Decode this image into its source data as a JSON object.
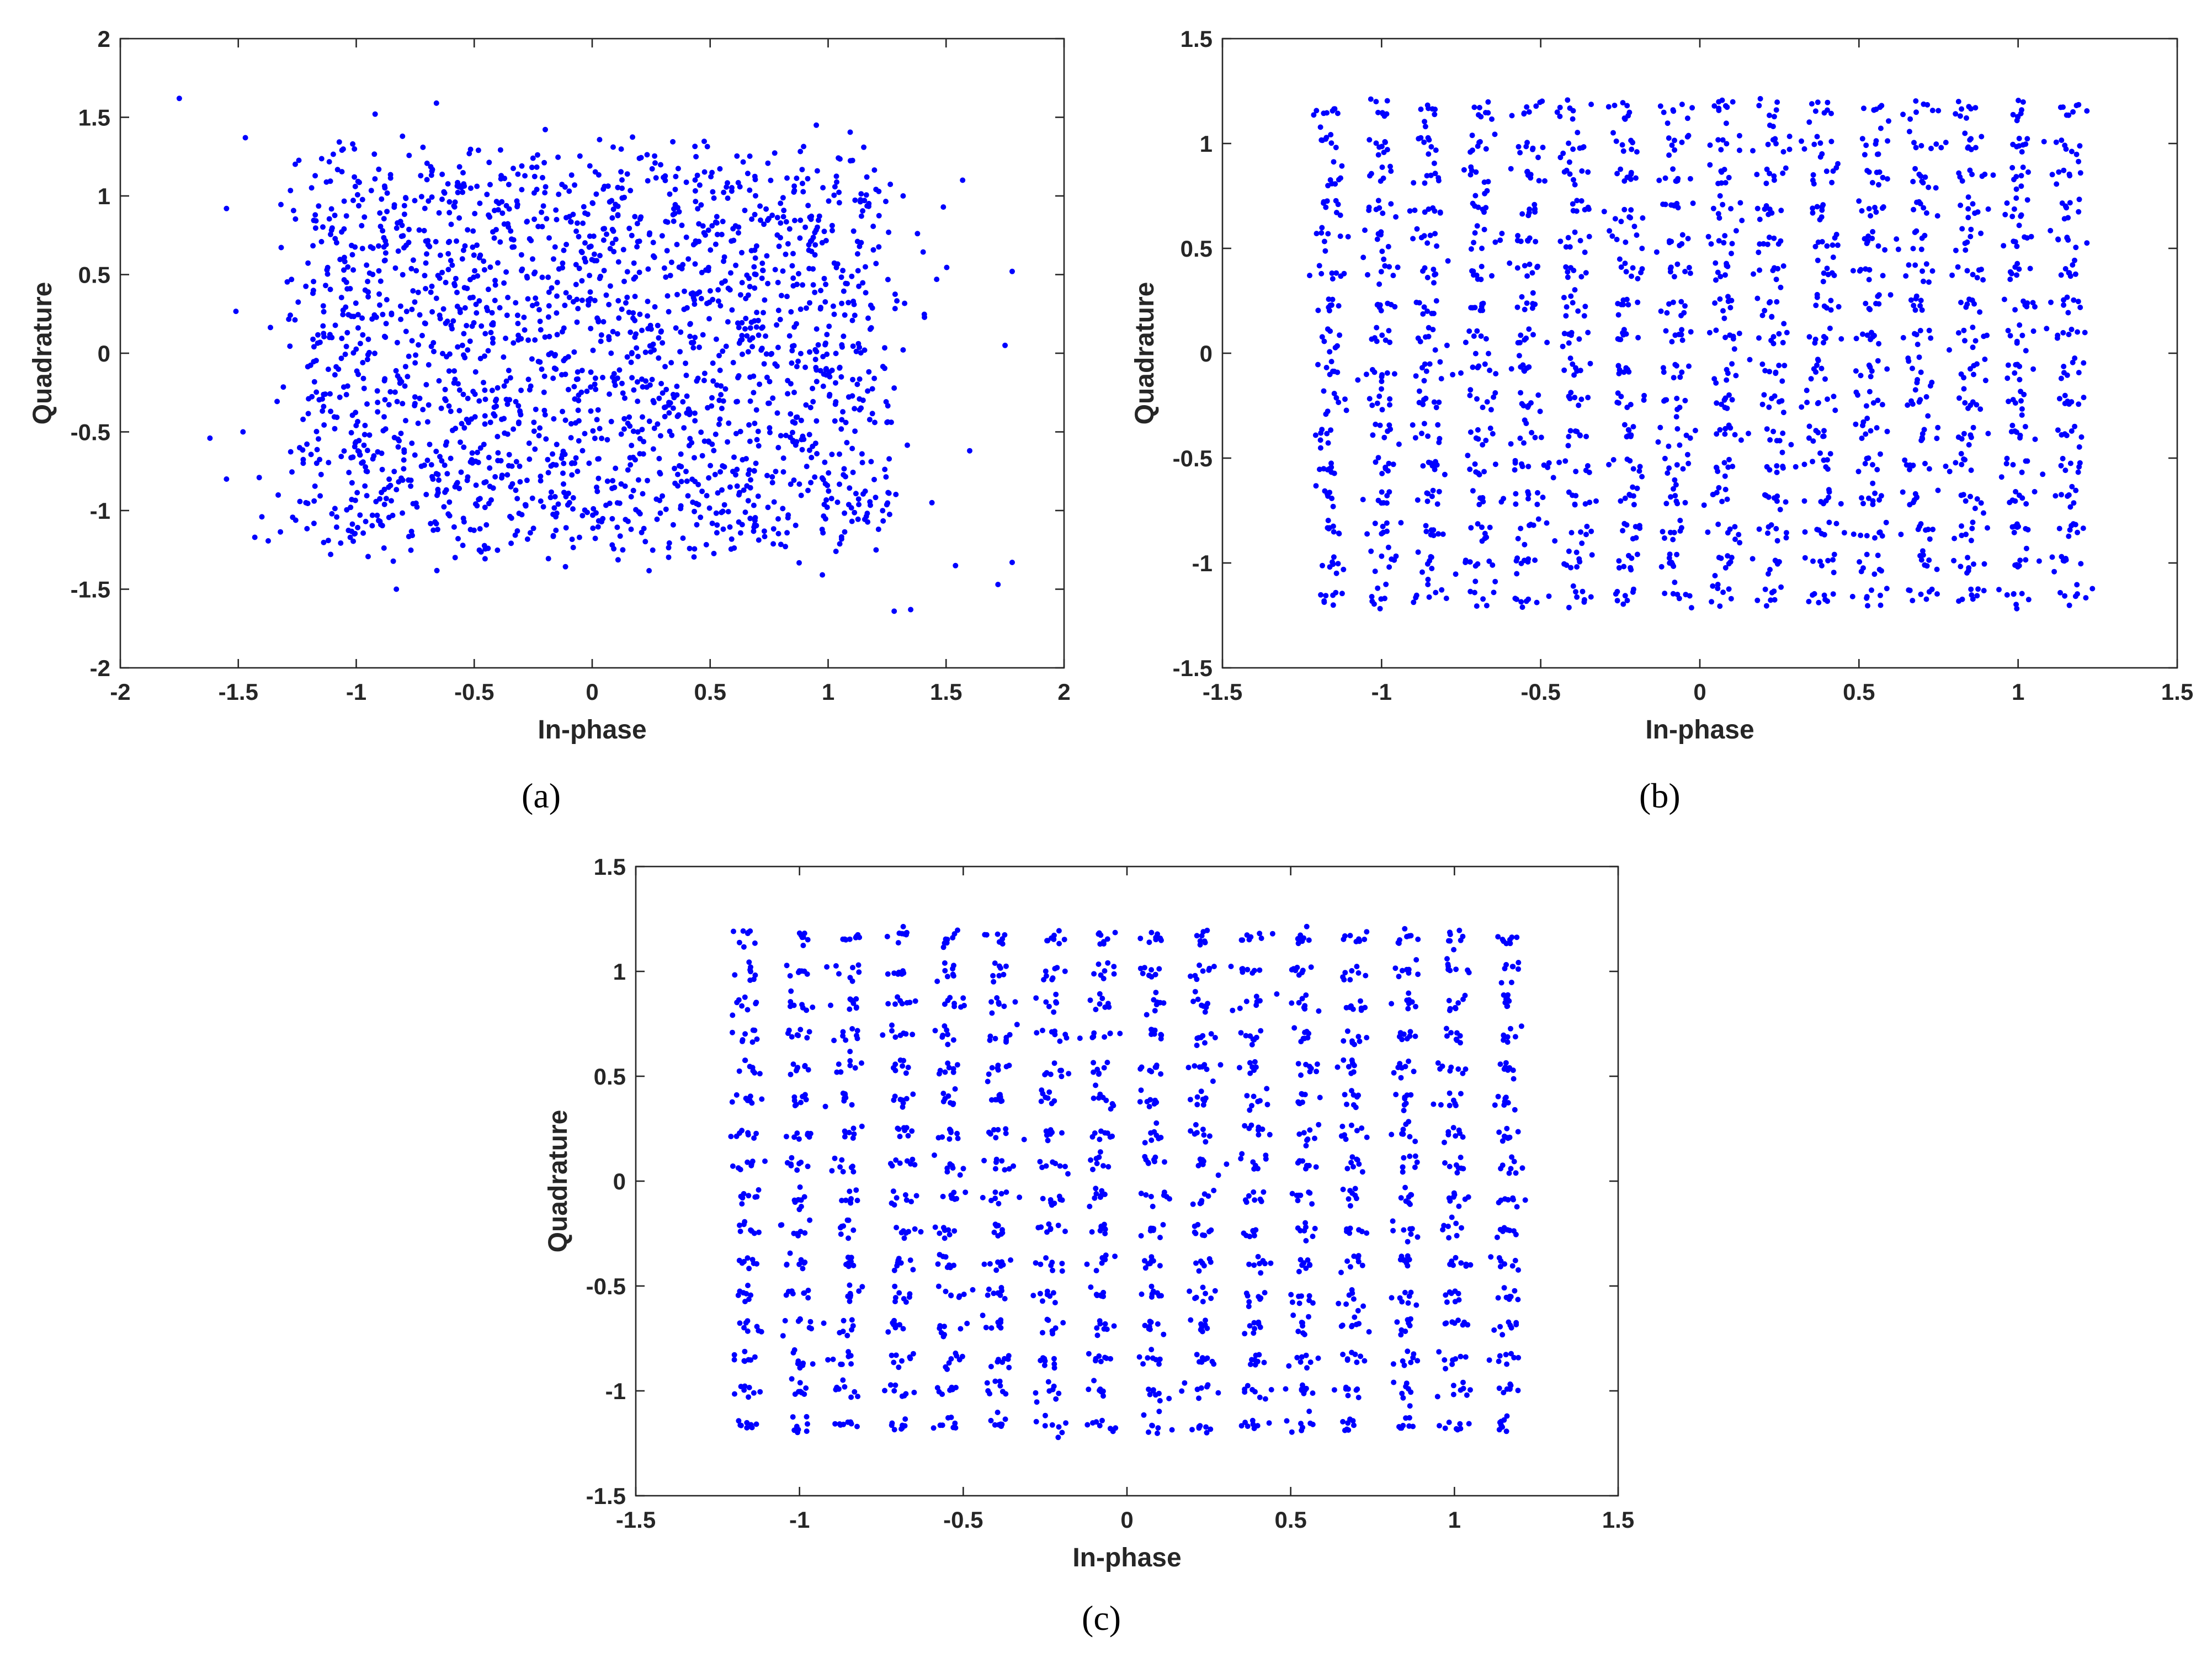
{
  "figure": {
    "captions": [
      "(a)",
      "(b)",
      "(c)"
    ]
  },
  "chart_data": [
    {
      "id": "a",
      "type": "scatter",
      "title": "",
      "xlabel": "In-phase",
      "ylabel": "Quadrature",
      "xlim": [
        -2,
        2
      ],
      "ylim": [
        -2,
        2
      ],
      "xticks": [
        -2,
        -1.5,
        -1,
        -0.5,
        0,
        0.5,
        1,
        1.5,
        2
      ],
      "yticks": [
        -2,
        -1.5,
        -1,
        -0.5,
        0,
        0.5,
        1,
        1.5,
        2
      ],
      "grid": false,
      "legend": "none",
      "marker_color": "#0000ff",
      "grid_points": [
        -1.16,
        -1.0,
        -0.85,
        -0.69,
        -0.54,
        -0.39,
        -0.23,
        -0.08,
        0.08,
        0.23,
        0.39,
        0.54,
        0.69,
        0.85,
        1.0,
        1.16
      ],
      "clusters_per_axis": 16,
      "samples_per_symbol": 8,
      "noise_std": 0.1,
      "outliers": [
        [
          -1.75,
          1.62
        ],
        [
          -1.55,
          0.92
        ],
        [
          -1.47,
          1.37
        ],
        [
          -1.62,
          -0.54
        ],
        [
          -1.55,
          -0.8
        ],
        [
          -1.48,
          -0.5
        ],
        [
          -1.4,
          -1.04
        ],
        [
          -1.43,
          -1.17
        ],
        [
          1.57,
          1.1
        ],
        [
          1.78,
          0.52
        ],
        [
          1.75,
          0.05
        ],
        [
          1.72,
          -1.47
        ],
        [
          1.78,
          -1.33
        ],
        [
          1.35,
          -1.63
        ],
        [
          1.28,
          -1.64
        ],
        [
          1.6,
          -0.62
        ],
        [
          1.46,
          0.47
        ],
        [
          -0.83,
          -1.5
        ],
        [
          0.95,
          1.45
        ],
        [
          -0.66,
          1.59
        ],
        [
          -0.92,
          1.52
        ],
        [
          1.54,
          -1.35
        ],
        [
          1.44,
          -0.95
        ]
      ]
    },
    {
      "id": "b",
      "type": "scatter",
      "title": "",
      "xlabel": "In-phase",
      "ylabel": "Quadrature",
      "xlim": [
        -1.5,
        1.5
      ],
      "ylim": [
        -1.5,
        1.5
      ],
      "xticks": [
        -1.5,
        -1,
        -0.5,
        0,
        0.5,
        1,
        1.5
      ],
      "yticks": [
        -1.5,
        -1,
        -0.5,
        0,
        0.5,
        1,
        1.5
      ],
      "grid": false,
      "legend": "none",
      "marker_color": "#0000ff",
      "grid_points": [
        -1.16,
        -1.0,
        -0.85,
        -0.69,
        -0.54,
        -0.39,
        -0.23,
        -0.08,
        0.08,
        0.23,
        0.39,
        0.54,
        0.69,
        0.85,
        1.0,
        1.16
      ],
      "clusters_per_axis": 16,
      "samples_per_symbol": 8,
      "noise_std": 0.028,
      "outliers": []
    },
    {
      "id": "c",
      "type": "scatter",
      "title": "",
      "xlabel": "In-phase",
      "ylabel": "Quadrature",
      "xlim": [
        -1.5,
        1.5
      ],
      "ylim": [
        -1.5,
        1.5
      ],
      "xticks": [
        -1.5,
        -1,
        -0.5,
        0,
        0.5,
        1,
        1.5
      ],
      "yticks": [
        -1.5,
        -1,
        -0.5,
        0,
        0.5,
        1,
        1.5
      ],
      "grid": false,
      "legend": "none",
      "marker_color": "#0000ff",
      "grid_points": [
        -1.16,
        -1.0,
        -0.85,
        -0.69,
        -0.54,
        -0.39,
        -0.23,
        -0.08,
        0.08,
        0.23,
        0.39,
        0.54,
        0.69,
        0.85,
        1.0,
        1.16
      ],
      "clusters_per_axis": 16,
      "samples_per_symbol": 8,
      "noise_std": 0.022,
      "outliers": []
    }
  ]
}
